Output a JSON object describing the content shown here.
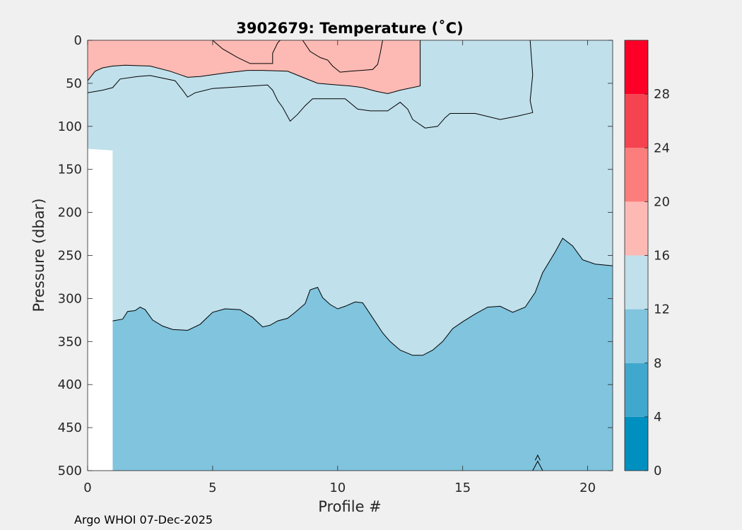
{
  "chart_data": {
    "type": "heatmap",
    "title": "3902679:  Temperature (˚C)",
    "xlabel": "Profile #",
    "ylabel": "Pressure (dbar)",
    "xlim": [
      0,
      21
    ],
    "ylim": [
      0,
      500
    ],
    "y_reversed": true,
    "x_ticks": [
      "0",
      "5",
      "10",
      "15",
      "20"
    ],
    "x_tick_values": [
      0,
      5,
      10,
      15,
      20
    ],
    "y_ticks": [
      "0",
      "50",
      "100",
      "150",
      "200",
      "250",
      "300",
      "350",
      "400",
      "450",
      "500"
    ],
    "y_tick_values": [
      0,
      50,
      100,
      150,
      200,
      250,
      300,
      350,
      400,
      450,
      500
    ],
    "grid": false,
    "colorbar": {
      "levels": [
        0,
        4,
        8,
        12,
        16,
        20,
        24,
        28,
        32
      ],
      "tick_labels": [
        "0",
        "4",
        "8",
        "12",
        "16",
        "20",
        "24",
        "28"
      ],
      "tick_values": [
        0,
        4,
        8,
        12,
        16,
        20,
        24,
        28
      ],
      "colors": [
        "#0090c0",
        "#41a8cd",
        "#80c4de",
        "#c0e0eb",
        "#fdbab4",
        "#fb7e7c",
        "#f54350",
        "#fc0028"
      ]
    },
    "band_colors": {
      "cool": "#80c4de",
      "mid": "#c0e0eb",
      "warm": "#fdbab4"
    },
    "regions": {
      "no_data": [
        [
          0,
          126
        ],
        [
          1,
          128
        ],
        [
          1,
          500
        ],
        [
          0,
          500
        ]
      ],
      "warm_16_20": [
        [
          0,
          0
        ],
        [
          13.3,
          0
        ],
        [
          13.3,
          53
        ],
        [
          12.5,
          58
        ],
        [
          12,
          62
        ],
        [
          11.5,
          59
        ],
        [
          11,
          55
        ],
        [
          10.5,
          53
        ],
        [
          10,
          52
        ],
        [
          9.2,
          50
        ],
        [
          8.6,
          43
        ],
        [
          8,
          36
        ],
        [
          7,
          35
        ],
        [
          6.4,
          35
        ],
        [
          5.5,
          38
        ],
        [
          4.5,
          42
        ],
        [
          4,
          43
        ],
        [
          3.7,
          40
        ],
        [
          3.3,
          36
        ],
        [
          2.5,
          30
        ],
        [
          1.5,
          29
        ],
        [
          1,
          30
        ],
        [
          0.6,
          32
        ],
        [
          0.3,
          36
        ],
        [
          0.1,
          42
        ],
        [
          0,
          47
        ]
      ],
      "cool_8_12": [
        [
          1,
          326
        ],
        [
          1.4,
          324
        ],
        [
          1.6,
          315
        ],
        [
          1.9,
          314
        ],
        [
          2.1,
          310
        ],
        [
          2.3,
          313
        ],
        [
          2.6,
          325
        ],
        [
          3,
          332
        ],
        [
          3.4,
          336
        ],
        [
          4,
          337
        ],
        [
          4.5,
          330
        ],
        [
          5,
          316
        ],
        [
          5.5,
          312
        ],
        [
          6.1,
          313
        ],
        [
          6.6,
          322
        ],
        [
          7,
          333
        ],
        [
          7.3,
          331
        ],
        [
          7.6,
          326
        ],
        [
          8,
          323
        ],
        [
          8.3,
          316
        ],
        [
          8.7,
          306
        ],
        [
          8.9,
          290
        ],
        [
          9.2,
          287
        ],
        [
          9.4,
          299
        ],
        [
          9.7,
          307
        ],
        [
          10,
          312
        ],
        [
          10.3,
          309
        ],
        [
          10.7,
          304
        ],
        [
          11,
          305
        ],
        [
          11.3,
          318
        ],
        [
          11.8,
          340
        ],
        [
          12.1,
          350
        ],
        [
          12.5,
          360
        ],
        [
          13,
          366
        ],
        [
          13.4,
          366
        ],
        [
          13.8,
          360
        ],
        [
          14.2,
          350
        ],
        [
          14.6,
          335
        ],
        [
          15,
          327
        ],
        [
          15.5,
          318
        ],
        [
          16,
          310
        ],
        [
          16.5,
          309
        ],
        [
          17,
          316
        ],
        [
          17.5,
          310
        ],
        [
          17.9,
          293
        ],
        [
          18.2,
          270
        ],
        [
          18.7,
          246
        ],
        [
          19,
          230
        ],
        [
          19.4,
          239
        ],
        [
          19.8,
          255
        ],
        [
          20.3,
          260
        ],
        [
          21,
          262
        ],
        [
          21,
          500
        ],
        [
          1,
          500
        ]
      ]
    },
    "contours": [
      [
        [
          0,
          47
        ],
        [
          0.3,
          36
        ],
        [
          0.6,
          32
        ],
        [
          1,
          30
        ],
        [
          1.5,
          29
        ],
        [
          2.5,
          30
        ],
        [
          3.3,
          36
        ],
        [
          3.7,
          40
        ],
        [
          4,
          43
        ],
        [
          4.5,
          42
        ],
        [
          5.5,
          38
        ],
        [
          6.4,
          35
        ],
        [
          7,
          35
        ],
        [
          8,
          36
        ],
        [
          8.6,
          43
        ],
        [
          9.2,
          50
        ],
        [
          10,
          52
        ],
        [
          10.5,
          53
        ],
        [
          11,
          55
        ],
        [
          11.5,
          59
        ],
        [
          12,
          62
        ],
        [
          12.5,
          58
        ],
        [
          13.3,
          53
        ],
        [
          13.3,
          0
        ]
      ],
      [
        [
          5,
          0
        ],
        [
          5.4,
          10
        ],
        [
          6,
          20
        ],
        [
          6.5,
          27
        ],
        [
          7.4,
          27
        ],
        [
          7.4,
          15
        ],
        [
          7.6,
          3
        ],
        [
          7.7,
          0
        ]
      ],
      [
        [
          8.6,
          0
        ],
        [
          8.9,
          13
        ],
        [
          9.3,
          20
        ],
        [
          9.6,
          23
        ],
        [
          9.8,
          30
        ],
        [
          10.1,
          37
        ],
        [
          10.5,
          36
        ],
        [
          11.4,
          34
        ],
        [
          11.6,
          28
        ],
        [
          11.7,
          15
        ],
        [
          11.8,
          0
        ]
      ],
      [
        [
          0,
          61
        ],
        [
          0.6,
          58
        ],
        [
          1,
          55
        ],
        [
          1.3,
          45
        ],
        [
          2,
          42
        ],
        [
          2.5,
          41
        ],
        [
          3.5,
          47
        ],
        [
          3.8,
          58
        ],
        [
          4,
          66
        ],
        [
          4.3,
          61
        ],
        [
          5,
          56
        ],
        [
          7.2,
          52
        ],
        [
          7.4,
          58
        ],
        [
          7.6,
          70
        ],
        [
          7.8,
          78
        ],
        [
          8.1,
          94
        ],
        [
          8.4,
          86
        ],
        [
          8.7,
          76
        ],
        [
          9,
          68
        ],
        [
          10,
          68
        ],
        [
          10.3,
          68
        ],
        [
          10.8,
          80
        ],
        [
          11.3,
          82
        ],
        [
          12,
          82
        ],
        [
          12.5,
          72
        ],
        [
          12.8,
          80
        ],
        [
          13,
          92
        ],
        [
          13.5,
          102
        ],
        [
          14,
          100
        ],
        [
          14.3,
          90
        ],
        [
          14.5,
          85
        ],
        [
          15.5,
          85
        ],
        [
          16.5,
          92
        ],
        [
          17.2,
          88
        ],
        [
          17.8,
          84
        ],
        [
          17.7,
          70
        ],
        [
          17.8,
          40
        ],
        [
          17.7,
          0
        ]
      ],
      [
        [
          1,
          326
        ],
        [
          1.4,
          324
        ],
        [
          1.6,
          315
        ],
        [
          1.9,
          314
        ],
        [
          2.1,
          310
        ],
        [
          2.3,
          313
        ],
        [
          2.6,
          325
        ],
        [
          3,
          332
        ],
        [
          3.4,
          336
        ],
        [
          4,
          337
        ],
        [
          4.5,
          330
        ],
        [
          5,
          316
        ],
        [
          5.5,
          312
        ],
        [
          6.1,
          313
        ],
        [
          6.6,
          322
        ],
        [
          7,
          333
        ],
        [
          7.3,
          331
        ],
        [
          7.6,
          326
        ],
        [
          8,
          323
        ],
        [
          8.3,
          316
        ],
        [
          8.7,
          306
        ],
        [
          8.9,
          290
        ],
        [
          9.2,
          287
        ],
        [
          9.4,
          299
        ],
        [
          9.7,
          307
        ],
        [
          10,
          312
        ],
        [
          10.3,
          309
        ],
        [
          10.7,
          304
        ],
        [
          11,
          305
        ],
        [
          11.3,
          318
        ],
        [
          11.8,
          340
        ],
        [
          12.1,
          350
        ],
        [
          12.5,
          360
        ],
        [
          13,
          366
        ],
        [
          13.4,
          366
        ],
        [
          13.8,
          360
        ],
        [
          14.2,
          350
        ],
        [
          14.6,
          335
        ],
        [
          15,
          327
        ],
        [
          15.5,
          318
        ],
        [
          16,
          310
        ],
        [
          16.5,
          309
        ],
        [
          17,
          316
        ],
        [
          17.5,
          310
        ],
        [
          17.9,
          293
        ],
        [
          18.2,
          270
        ],
        [
          18.7,
          246
        ],
        [
          19,
          230
        ],
        [
          19.4,
          239
        ],
        [
          19.8,
          255
        ],
        [
          20.3,
          260
        ],
        [
          21,
          262
        ]
      ],
      [
        [
          17.8,
          500
        ],
        [
          18,
          489
        ],
        [
          18.2,
          500
        ]
      ],
      [
        [
          17.9,
          488
        ],
        [
          18,
          482
        ],
        [
          18.1,
          488
        ]
      ]
    ]
  },
  "footer": "Argo WHOI 07-Dec-2025"
}
